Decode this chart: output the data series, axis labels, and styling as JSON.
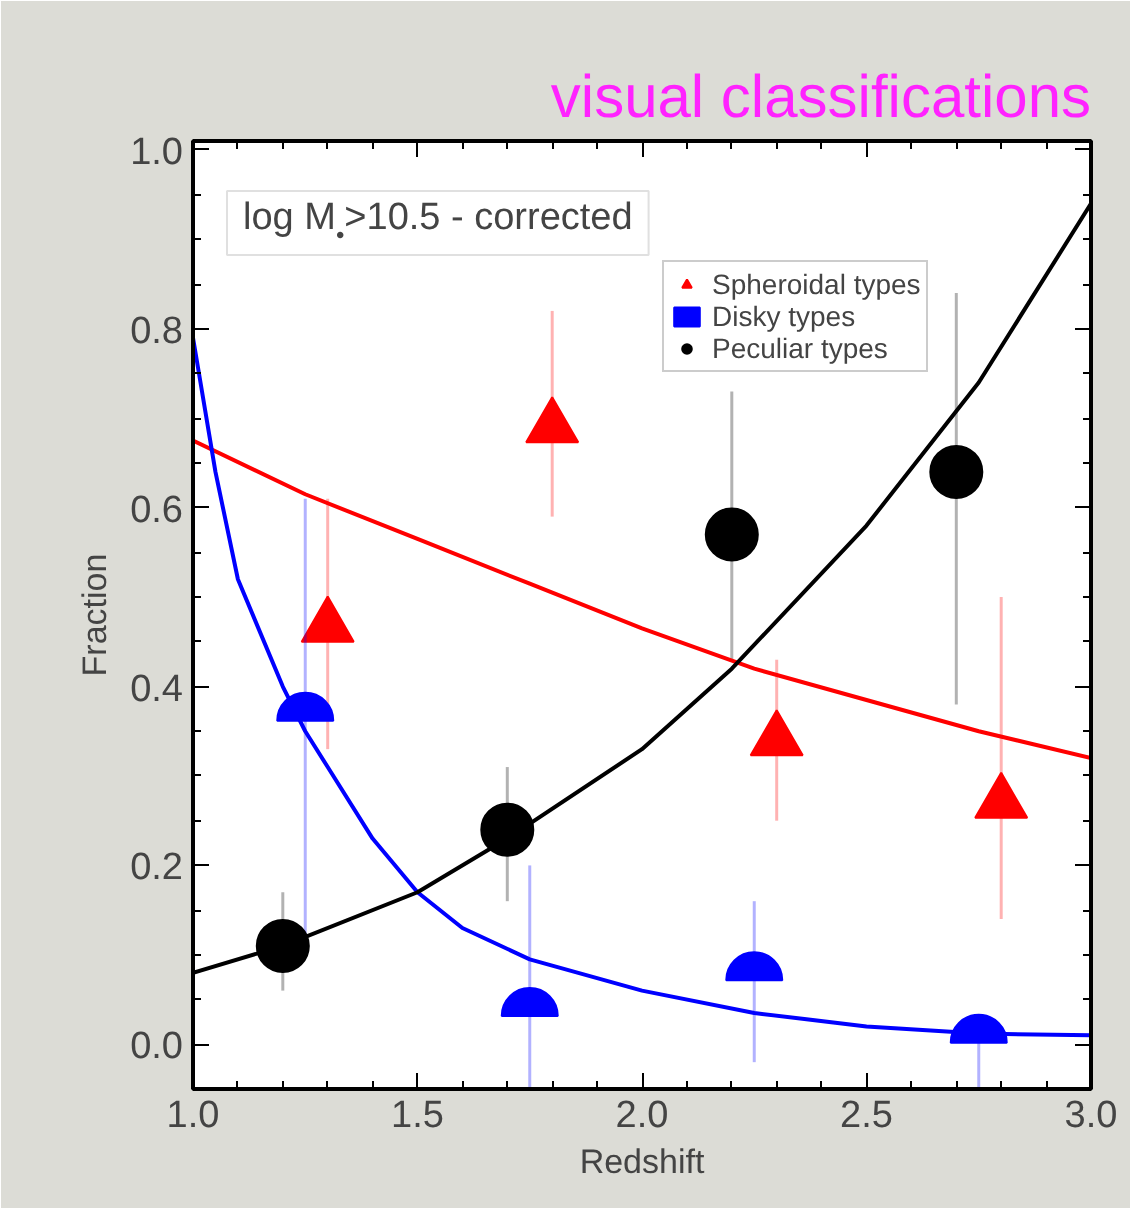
{
  "chart_data": {
    "type": "scatter",
    "title": "visual classifications",
    "xlabel": "Redshift",
    "ylabel": "Fraction",
    "xlim": [
      1.0,
      3.0
    ],
    "ylim": [
      -0.05,
      1.01
    ],
    "xticks": [
      {
        "value": 1,
        "label": "1.0"
      },
      1.5,
      {
        "value": 2,
        "label": "2.0"
      },
      2.5,
      {
        "value": 3,
        "label": "3.0"
      }
    ],
    "yticks": [
      {
        "value": 0,
        "label": "0.0"
      },
      0.2,
      0.4,
      0.6,
      0.8,
      {
        "value": 1,
        "label": "1.0"
      }
    ],
    "grid": false,
    "legend": "top right",
    "annotations": [
      "log M$_{•}$>10.5 - corrected"
    ],
    "series": [
      {
        "name": "Spheroidal types",
        "color": "#ff0000",
        "marker": "triangle",
        "x": [
          1.3,
          1.8,
          2.3,
          2.8
        ],
        "values": [
          0.467,
          0.69,
          0.34,
          0.27
        ],
        "errors": [
          [
            0.33,
            0.61
          ],
          [
            0.59,
            0.82
          ],
          [
            0.25,
            0.43
          ],
          [
            0.14,
            0.5
          ]
        ]
      },
      {
        "name": "Disky types",
        "color": "#0000ff",
        "x": [
          1.25,
          1.75,
          2.25,
          2.75
        ],
        "values": [
          0.375,
          0.045,
          0.085,
          0.015
        ],
        "errors": [
          [
            0.12,
            0.61
          ],
          [
            -0.05,
            0.2
          ],
          [
            -0.02,
            0.16
          ],
          [
            -0.05,
            0.015
          ]
        ]
      },
      {
        "name": "Peculiar types",
        "color": "#000000",
        "marker": "circle",
        "x": [
          1.2,
          1.7,
          2.2,
          2.7
        ],
        "values": [
          0.11,
          0.24,
          0.57,
          0.64
        ],
        "errors": [
          [
            0.06,
            0.17
          ],
          [
            0.16,
            0.31
          ],
          [
            0.43,
            0.73
          ],
          [
            0.38,
            0.84
          ]
        ]
      },
      {
        "type": "line",
        "color": "#ff0000",
        "x": [
          1.0,
          1.25,
          1.5,
          1.75,
          2.0,
          2.25,
          2.5,
          2.75,
          3.0
        ],
        "values": [
          0.675,
          0.615,
          0.565,
          0.515,
          0.465,
          0.42,
          0.385,
          0.35,
          0.32
        ]
      },
      {
        "type": "line",
        "color": "#0000ff",
        "x": [
          1.0,
          1.05,
          1.1,
          1.2,
          1.25,
          1.3,
          1.4,
          1.5,
          1.6,
          1.75,
          2.0,
          2.25,
          2.5,
          2.75,
          3.0
        ],
        "values": [
          0.79,
          0.64,
          0.52,
          0.4,
          0.35,
          0.31,
          0.23,
          0.17,
          0.13,
          0.095,
          0.06,
          0.035,
          0.02,
          0.012,
          0.01
        ]
      },
      {
        "type": "line",
        "color": "#000000",
        "x": [
          1.0,
          1.2,
          1.5,
          1.7,
          2.0,
          2.2,
          2.5,
          2.75,
          3.0
        ],
        "values": [
          0.08,
          0.11,
          0.17,
          0.23,
          0.33,
          0.42,
          0.58,
          0.74,
          0.94
        ]
      }
    ]
  }
}
